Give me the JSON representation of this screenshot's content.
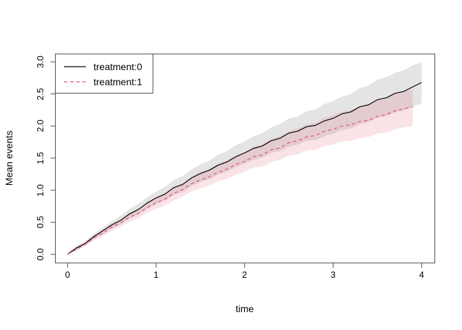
{
  "chart_data": {
    "type": "line",
    "title": "",
    "xlabel": "time",
    "ylabel": "Mean events",
    "xlim": [
      0,
      4
    ],
    "ylim": [
      0,
      3
    ],
    "grid": false,
    "xticks": {
      "values": [
        0,
        1,
        2,
        3,
        4
      ],
      "labels": [
        "0",
        "1",
        "2",
        "3",
        "4"
      ]
    },
    "yticks": {
      "values": [
        0,
        0.5,
        1,
        1.5,
        2,
        2.5,
        3
      ],
      "labels": [
        "0.0",
        "0.5",
        "1.0",
        "1.5",
        "2.0",
        "2.5",
        "3.0"
      ]
    },
    "legend": {
      "position": "topleft",
      "entries": [
        {
          "label": "treatment:0",
          "line": "solid",
          "color": "#000000"
        },
        {
          "label": "treatment:1",
          "line": "dashed",
          "color": "#DF536B"
        }
      ]
    },
    "series": [
      {
        "name": "treatment:0",
        "color": "#000000",
        "style": "solid",
        "band_color": "#BEBEBE",
        "band_opacity": 0.42,
        "x": [
          0,
          0.1,
          0.2,
          0.3,
          0.4,
          0.5,
          0.6,
          0.7,
          0.8,
          0.9,
          1.0,
          1.1,
          1.2,
          1.3,
          1.4,
          1.5,
          1.6,
          1.7,
          1.8,
          1.9,
          2.0,
          2.1,
          2.2,
          2.3,
          2.4,
          2.5,
          2.6,
          2.7,
          2.8,
          2.9,
          3.0,
          3.1,
          3.2,
          3.3,
          3.4,
          3.5,
          3.6,
          3.7,
          3.8,
          3.9,
          4.0
        ],
        "y": [
          0.0,
          0.1,
          0.17,
          0.28,
          0.37,
          0.46,
          0.53,
          0.63,
          0.7,
          0.8,
          0.88,
          0.94,
          1.04,
          1.09,
          1.19,
          1.26,
          1.31,
          1.39,
          1.44,
          1.52,
          1.58,
          1.65,
          1.69,
          1.77,
          1.81,
          1.89,
          1.92,
          1.99,
          2.01,
          2.08,
          2.12,
          2.19,
          2.22,
          2.3,
          2.33,
          2.41,
          2.44,
          2.51,
          2.54,
          2.61,
          2.68
        ],
        "upper": [
          0.02,
          0.13,
          0.21,
          0.32,
          0.42,
          0.52,
          0.6,
          0.71,
          0.79,
          0.89,
          0.98,
          1.05,
          1.16,
          1.22,
          1.32,
          1.4,
          1.46,
          1.55,
          1.61,
          1.7,
          1.76,
          1.84,
          1.89,
          1.98,
          2.03,
          2.12,
          2.15,
          2.23,
          2.26,
          2.34,
          2.39,
          2.46,
          2.5,
          2.59,
          2.63,
          2.72,
          2.76,
          2.83,
          2.87,
          2.95,
          3.0
        ],
        "lower": [
          0.0,
          0.07,
          0.14,
          0.24,
          0.32,
          0.4,
          0.47,
          0.56,
          0.62,
          0.71,
          0.79,
          0.84,
          0.93,
          0.97,
          1.07,
          1.13,
          1.17,
          1.24,
          1.29,
          1.36,
          1.41,
          1.47,
          1.51,
          1.58,
          1.61,
          1.68,
          1.71,
          1.77,
          1.78,
          1.84,
          1.88,
          1.94,
          1.96,
          2.03,
          2.06,
          2.13,
          2.15,
          2.21,
          2.24,
          2.3,
          2.36
        ]
      },
      {
        "name": "treatment:1",
        "color": "#DF536B",
        "style": "dashed",
        "band_color": "#DF536B",
        "band_opacity": 0.16,
        "x": [
          0,
          0.1,
          0.2,
          0.3,
          0.4,
          0.5,
          0.6,
          0.7,
          0.8,
          0.9,
          1.0,
          1.1,
          1.2,
          1.3,
          1.4,
          1.5,
          1.6,
          1.7,
          1.8,
          1.9,
          2.0,
          2.1,
          2.2,
          2.3,
          2.4,
          2.5,
          2.6,
          2.7,
          2.8,
          2.9,
          3.0,
          3.1,
          3.2,
          3.3,
          3.4,
          3.5,
          3.6,
          3.7,
          3.8,
          3.9
        ],
        "y": [
          0.0,
          0.08,
          0.16,
          0.26,
          0.33,
          0.43,
          0.49,
          0.58,
          0.64,
          0.73,
          0.8,
          0.86,
          0.95,
          1.01,
          1.1,
          1.16,
          1.21,
          1.28,
          1.33,
          1.4,
          1.45,
          1.52,
          1.55,
          1.63,
          1.66,
          1.74,
          1.77,
          1.83,
          1.85,
          1.92,
          1.95,
          2.0,
          2.02,
          2.07,
          2.09,
          2.15,
          2.18,
          2.24,
          2.27,
          2.3
        ],
        "upper": [
          0.02,
          0.11,
          0.19,
          0.3,
          0.38,
          0.48,
          0.55,
          0.65,
          0.71,
          0.81,
          0.89,
          0.95,
          1.05,
          1.11,
          1.21,
          1.28,
          1.33,
          1.41,
          1.47,
          1.54,
          1.6,
          1.68,
          1.71,
          1.8,
          1.84,
          1.92,
          1.96,
          2.03,
          2.05,
          2.13,
          2.17,
          2.22,
          2.25,
          2.3,
          2.33,
          2.4,
          2.43,
          2.5,
          2.54,
          2.57
        ],
        "lower": [
          0.0,
          0.05,
          0.13,
          0.22,
          0.28,
          0.37,
          0.43,
          0.51,
          0.56,
          0.65,
          0.71,
          0.76,
          0.84,
          0.9,
          0.98,
          1.03,
          1.07,
          1.14,
          1.18,
          1.24,
          1.29,
          1.35,
          1.37,
          1.44,
          1.47,
          1.54,
          1.56,
          1.62,
          1.63,
          1.69,
          1.71,
          1.76,
          1.77,
          1.81,
          1.83,
          1.88,
          1.9,
          1.95,
          1.98,
          2.0
        ]
      }
    ],
    "axis_color": "#4d4d4d"
  }
}
